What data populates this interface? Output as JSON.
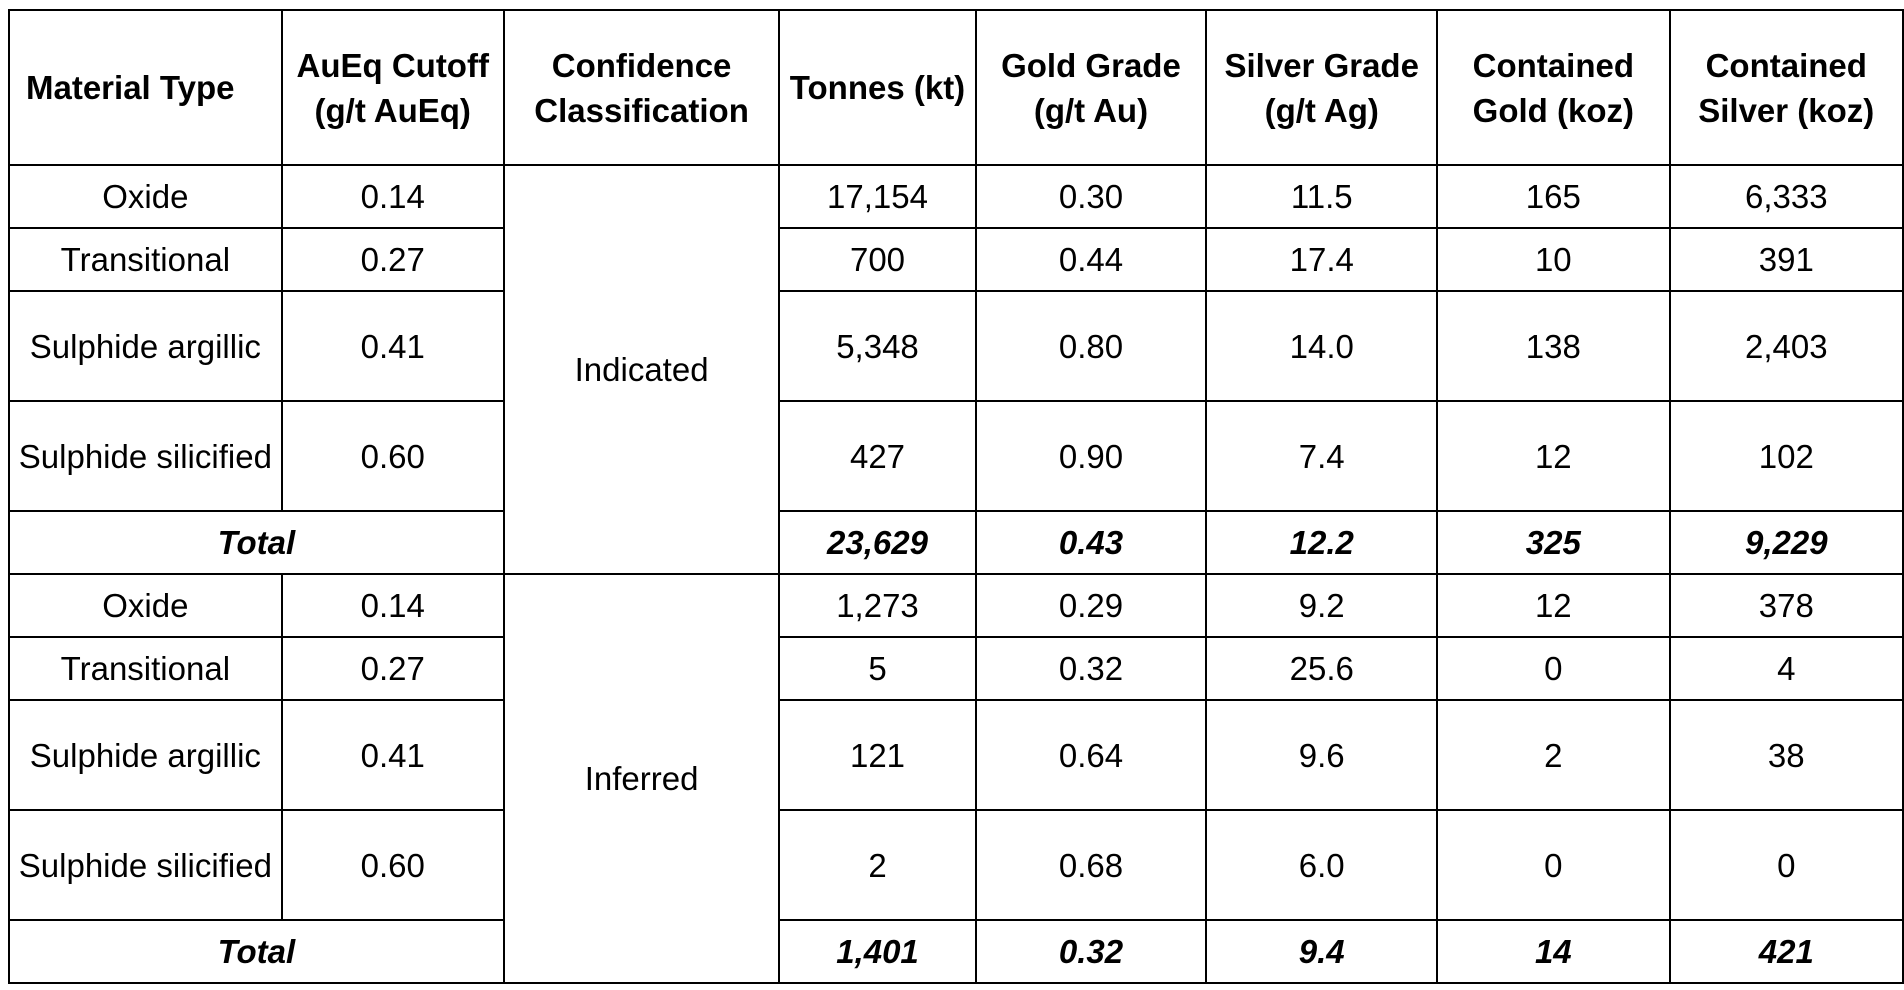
{
  "table": {
    "headers": [
      "Material Type",
      "AuEq Cutoff (g/t AuEq)",
      "Confidence Classification",
      "Tonnes (kt)",
      "Gold Grade (g/t Au)",
      "Silver Grade (g/t Ag)",
      "Contained Gold (koz)",
      "Contained Silver (koz)"
    ],
    "groups": [
      {
        "classification": "Indicated",
        "rows": [
          {
            "material": "Oxide",
            "cutoff": "0.14",
            "tonnes": "17,154",
            "gold_grade": "0.30",
            "silver_grade": "11.5",
            "contained_gold": "165",
            "contained_silver": "6,333"
          },
          {
            "material": "Transitional",
            "cutoff": "0.27",
            "tonnes": "700",
            "gold_grade": "0.44",
            "silver_grade": "17.4",
            "contained_gold": "10",
            "contained_silver": "391"
          },
          {
            "material": "Sulphide argillic",
            "cutoff": "0.41",
            "tonnes": "5,348",
            "gold_grade": "0.80",
            "silver_grade": "14.0",
            "contained_gold": "138",
            "contained_silver": "2,403"
          },
          {
            "material": "Sulphide silicified",
            "cutoff": "0.60",
            "tonnes": "427",
            "gold_grade": "0.90",
            "silver_grade": "7.4",
            "contained_gold": "12",
            "contained_silver": "102"
          }
        ],
        "total": {
          "label": "Total",
          "tonnes": "23,629",
          "gold_grade": "0.43",
          "silver_grade": "12.2",
          "contained_gold": "325",
          "contained_silver": "9,229"
        }
      },
      {
        "classification": "Inferred",
        "rows": [
          {
            "material": "Oxide",
            "cutoff": "0.14",
            "tonnes": "1,273",
            "gold_grade": "0.29",
            "silver_grade": "9.2",
            "contained_gold": "12",
            "contained_silver": "378"
          },
          {
            "material": "Transitional",
            "cutoff": "0.27",
            "tonnes": "5",
            "gold_grade": "0.32",
            "silver_grade": "25.6",
            "contained_gold": "0",
            "contained_silver": "4"
          },
          {
            "material": "Sulphide argillic",
            "cutoff": "0.41",
            "tonnes": "121",
            "gold_grade": "0.64",
            "silver_grade": "9.6",
            "contained_gold": "2",
            "contained_silver": "38"
          },
          {
            "material": "Sulphide silicified",
            "cutoff": "0.60",
            "tonnes": "2",
            "gold_grade": "0.68",
            "silver_grade": "6.0",
            "contained_gold": "0",
            "contained_silver": "0"
          }
        ],
        "total": {
          "label": "Total",
          "tonnes": "1,401",
          "gold_grade": "0.32",
          "silver_grade": "9.4",
          "contained_gold": "14",
          "contained_silver": "421"
        }
      }
    ]
  }
}
